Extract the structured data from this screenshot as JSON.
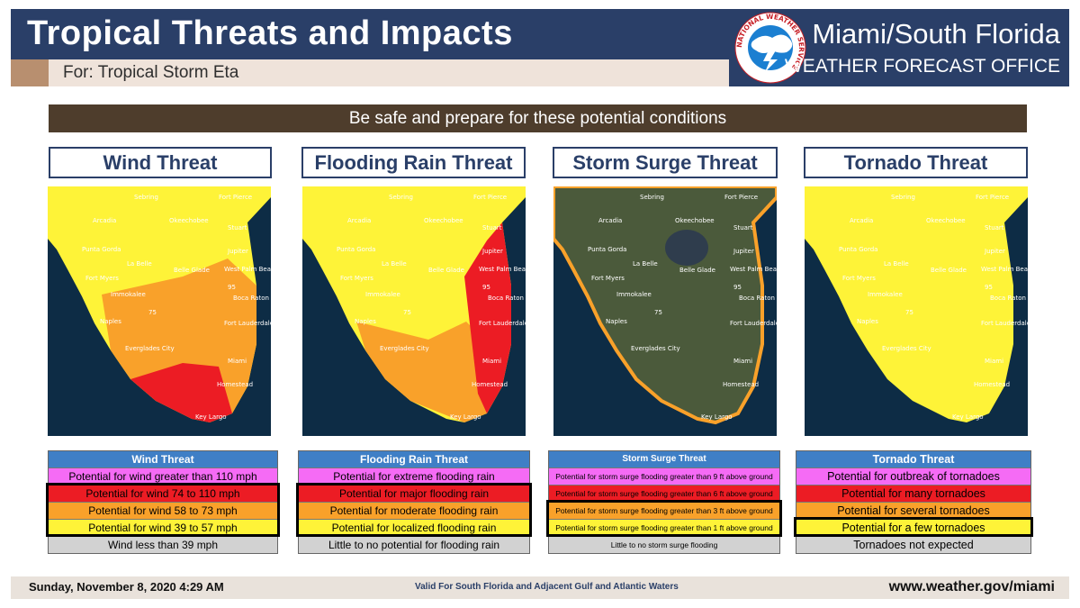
{
  "header": {
    "title": "Tropical Threats and Impacts",
    "subtitle": "For: Tropical Storm Eta",
    "office_name": "Miami/South Florida",
    "office_type": "WEATHER FORECAST OFFICE",
    "logo_text": "NATIONAL WEATHER SERVICE",
    "colors": {
      "header_bg": "#2a3f68",
      "subtitle_bg": "#efe3da",
      "accent_chip": "#b88f6f"
    }
  },
  "banner": {
    "text": "Be safe and prepare for these potential conditions",
    "color": "#4e3d2c"
  },
  "map_labels": [
    "Sebring",
    "Fort Pierce",
    "Arcadia",
    "Okeechobee",
    "Stuart",
    "Punta Gorda",
    "Jupiter",
    "La Belle",
    "Belle Glade",
    "West Palm Beach",
    "Fort Myers",
    "Immokalee",
    "Boca Raton",
    "Naples",
    "75",
    "95",
    "Fort Lauderdale",
    "Everglades City",
    "Miami",
    "Homestead",
    "Key Largo"
  ],
  "threat_colors": {
    "extreme": "#f56bf5",
    "high": "#ec1c24",
    "moderate": "#f9a12a",
    "elevated": "#fef338",
    "none": "#d2d2d2",
    "legend_header": "#3f7fc6"
  },
  "panels": [
    {
      "title": "Wind Threat",
      "map_fill": {
        "base": "elevated",
        "central": "moderate",
        "coast": "high"
      },
      "legend": {
        "header": "Wind Threat",
        "rows": [
          {
            "label": "Potential for wind greater than 110 mph",
            "level": "extreme"
          },
          {
            "label": "Potential for wind 74 to 110 mph",
            "level": "high"
          },
          {
            "label": "Potential for wind 58 to 73 mph",
            "level": "moderate"
          },
          {
            "label": "Potential for wind 39 to 57 mph",
            "level": "elevated"
          },
          {
            "label": "Wind less than 39 mph",
            "level": "none"
          }
        ],
        "highlighted_rows": [
          1,
          3
        ]
      }
    },
    {
      "title": "Flooding Rain Threat",
      "map_fill": {
        "base": "elevated",
        "central": "moderate",
        "coast": "high"
      },
      "legend": {
        "header": "Flooding Rain Threat",
        "rows": [
          {
            "label": "Potential for extreme flooding rain",
            "level": "extreme"
          },
          {
            "label": "Potential for major flooding rain",
            "level": "high"
          },
          {
            "label": "Potential for moderate flooding rain",
            "level": "moderate"
          },
          {
            "label": "Potential for localized flooding rain",
            "level": "elevated"
          },
          {
            "label": "Little to no potential for flooding rain",
            "level": "none"
          }
        ],
        "highlighted_rows": [
          1,
          3
        ]
      }
    },
    {
      "title": "Storm Surge Threat",
      "map_fill": {
        "base": "none",
        "central": "none",
        "coast": "moderate"
      },
      "legend": {
        "header": "Storm Surge Threat",
        "rows": [
          {
            "label": "Potential for storm surge flooding greater than 9 ft above ground",
            "level": "extreme"
          },
          {
            "label": "Potential for storm surge flooding greater than 6 ft above ground",
            "level": "high"
          },
          {
            "label": "Potential for storm surge flooding greater than 3 ft above ground",
            "level": "moderate"
          },
          {
            "label": "Potential for storm surge flooding greater than 1 ft above ground",
            "level": "elevated"
          },
          {
            "label": "Little to no storm surge flooding",
            "level": "none"
          }
        ],
        "highlighted_rows": [
          2,
          3
        ]
      }
    },
    {
      "title": "Tornado Threat",
      "map_fill": {
        "base": "elevated",
        "central": "elevated",
        "coast": "elevated"
      },
      "legend": {
        "header": "Tornado Threat",
        "rows": [
          {
            "label": "Potential for outbreak of tornadoes",
            "level": "extreme"
          },
          {
            "label": "Potential for many  tornadoes",
            "level": "high"
          },
          {
            "label": "Potential for several tornadoes",
            "level": "moderate"
          },
          {
            "label": "Potential for a few tornadoes",
            "level": "elevated"
          },
          {
            "label": "Tornadoes not expected",
            "level": "none"
          }
        ],
        "highlighted_rows": [
          3,
          3
        ]
      }
    }
  ],
  "footer": {
    "date": "Sunday, November 8, 2020   4:29 AM",
    "valid": "Valid For South Florida and Adjacent Gulf and Atlantic Waters",
    "url": "www.weather.gov/miami"
  }
}
